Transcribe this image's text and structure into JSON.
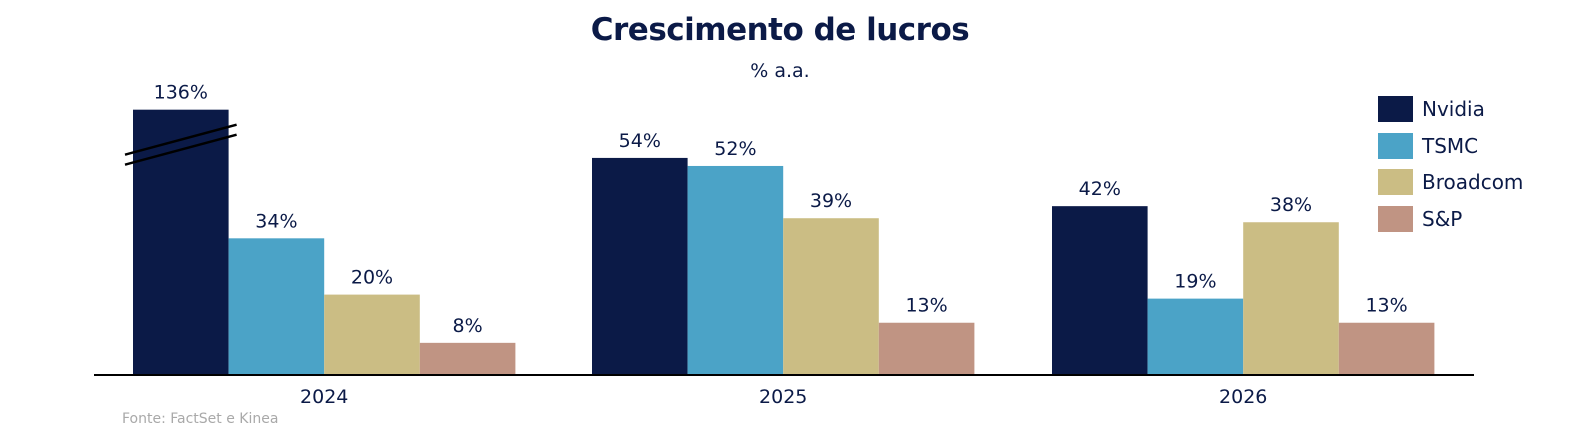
{
  "chart_data": {
    "type": "bar",
    "title": "Crescimento de lucros",
    "subtitle": "% a.a.",
    "xlabel": "",
    "ylabel": "",
    "source": "Fonte: FactSet e Kinea",
    "categories": [
      "2024",
      "2025",
      "2026"
    ],
    "series": [
      {
        "name": "Nvidia",
        "color": "#0b1a47",
        "values": [
          136,
          54,
          42
        ],
        "labels": [
          "136%",
          "54%",
          "42%"
        ],
        "broken": [
          true,
          false,
          false
        ]
      },
      {
        "name": "TSMC",
        "color": "#4ba3c7",
        "values": [
          34,
          52,
          19
        ],
        "labels": [
          "34%",
          "52%",
          "19%"
        ],
        "broken": [
          false,
          false,
          false
        ]
      },
      {
        "name": "Broadcom",
        "color": "#cbbd84",
        "values": [
          20,
          39,
          38
        ],
        "labels": [
          "20%",
          "39%",
          "38%"
        ],
        "broken": [
          false,
          false,
          false
        ]
      },
      {
        "name": "S&P",
        "color": "#c09483",
        "values": [
          8,
          13,
          13
        ],
        "labels": [
          "8%",
          "13%",
          "13%"
        ],
        "broken": [
          false,
          false,
          false
        ]
      }
    ],
    "grid": false,
    "legend_position": "right"
  }
}
